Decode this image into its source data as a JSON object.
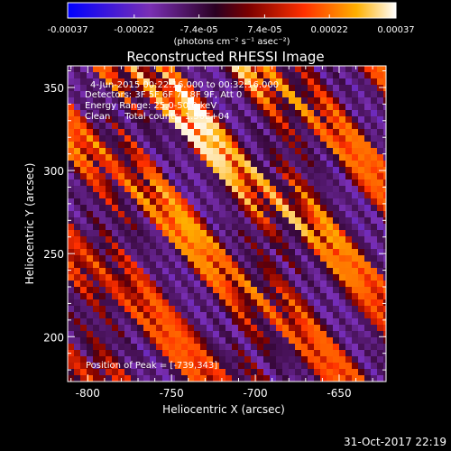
{
  "colorbar": {
    "tick_labels": [
      "-0.00037",
      "-0.00022",
      "-7.4e-05",
      "7.4e-05",
      "0.00022",
      "0.00037"
    ],
    "tick_values": [
      -0.00037,
      -0.00022,
      -7.4e-05,
      7.4e-05,
      0.00022,
      0.00037
    ],
    "range": [
      -0.00037,
      0.00037
    ],
    "unit_label": "(photons cm⁻² s⁻¹ asec⁻²)"
  },
  "title": "Reconstructed RHESSI Image",
  "annotations": {
    "time_line": "4-Jun-2015 00:22:16.000 to 00:32:16.000",
    "detectors_line": "Detectors: 3F 5F 6F 7F 8F 9F, Att 0",
    "energy_line": "Energy Range: 25.0-50.0 keV",
    "method_line": "Clean     Total counts: 1.56E+04",
    "peak_line": "Position of Peak = [-739,343]"
  },
  "footer": {
    "date": "31-Oct-2017 22:19"
  },
  "colors": {
    "background": "#000000",
    "text": "#ffffff"
  },
  "chart_data": {
    "type": "heatmap",
    "title": "Reconstructed RHESSI Image",
    "xlabel": "Heliocentric X (arcsec)",
    "ylabel": "Heliocentric Y (arcsec)",
    "xlim": [
      -812,
      -622
    ],
    "ylim": [
      173,
      363
    ],
    "x_ticks": [
      -800,
      -750,
      -700,
      -650
    ],
    "x_tick_labels": [
      "-800",
      "-750",
      "-700",
      "-650"
    ],
    "y_ticks": [
      200,
      250,
      300,
      350
    ],
    "y_tick_labels": [
      "200",
      "250",
      "300",
      "350"
    ],
    "colormap": "blue-purple-red-yellow-white",
    "value_range": [
      -0.00037,
      0.00037
    ],
    "pattern": "diagonal fringe bands running from lower-left to upper-right",
    "peak_position": [
      -739,
      343
    ]
  }
}
